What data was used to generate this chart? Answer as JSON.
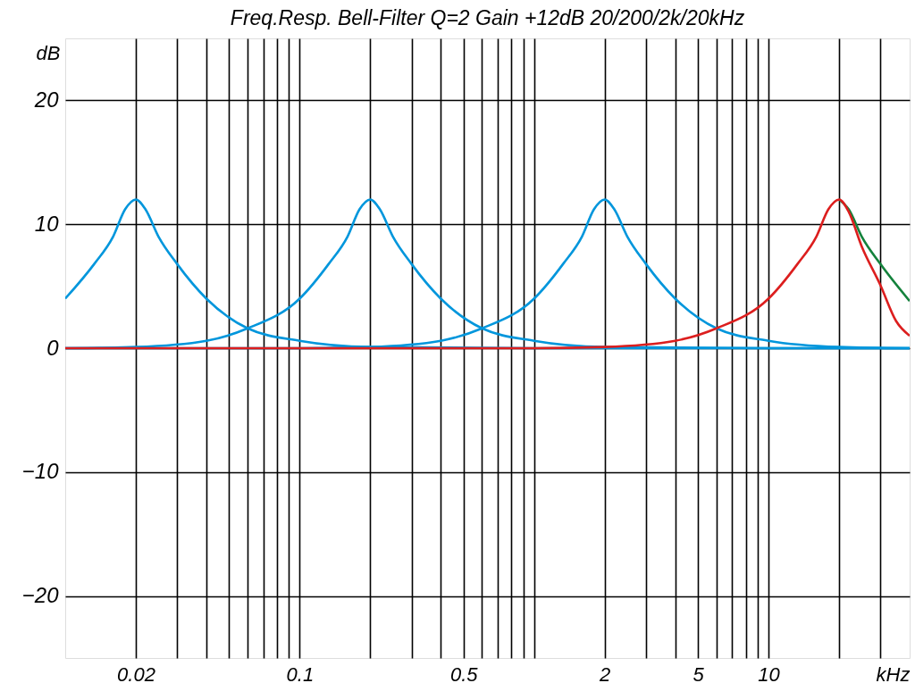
{
  "chart_data": {
    "type": "line",
    "title": "Freq.Resp. Bell-Filter Q=2 Gain +12dB 20/200/2k/20kHz",
    "xlabel": "kHz",
    "ylabel": "dB",
    "log": "x",
    "grid": true,
    "legend": false,
    "xlim": [
      0.01,
      40
    ],
    "ylim": [
      -25,
      25
    ],
    "xticks": [
      {
        "value": 0.02,
        "label": "0.02"
      },
      {
        "value": 0.03,
        "label": null
      },
      {
        "value": 0.04,
        "label": null
      },
      {
        "value": 0.05,
        "label": null
      },
      {
        "value": 0.06,
        "label": null
      },
      {
        "value": 0.07,
        "label": null
      },
      {
        "value": 0.08,
        "label": null
      },
      {
        "value": 0.09,
        "label": null
      },
      {
        "value": 0.1,
        "label": "0.1"
      },
      {
        "value": 0.2,
        "label": null
      },
      {
        "value": 0.3,
        "label": null
      },
      {
        "value": 0.4,
        "label": null
      },
      {
        "value": 0.5,
        "label": "0.5"
      },
      {
        "value": 0.6,
        "label": null
      },
      {
        "value": 0.7,
        "label": null
      },
      {
        "value": 0.8,
        "label": null
      },
      {
        "value": 0.9,
        "label": null
      },
      {
        "value": 1,
        "label": null
      },
      {
        "value": 2,
        "label": "2"
      },
      {
        "value": 3,
        "label": null
      },
      {
        "value": 4,
        "label": null
      },
      {
        "value": 5,
        "label": "5"
      },
      {
        "value": 6,
        "label": null
      },
      {
        "value": 7,
        "label": null
      },
      {
        "value": 8,
        "label": null
      },
      {
        "value": 9,
        "label": null
      },
      {
        "value": 10,
        "label": "10"
      },
      {
        "value": 20,
        "label": null
      },
      {
        "value": 30,
        "label": null
      }
    ],
    "yticks": [
      {
        "value": -20,
        "label": "−20"
      },
      {
        "value": -10,
        "label": "−10"
      },
      0,
      10,
      20
    ],
    "series": [
      {
        "color": "#0096dc",
        "x": [
          0.01,
          0.0133,
          0.016,
          0.018,
          0.02,
          0.022,
          0.025,
          0.03,
          0.04,
          0.06,
          0.1,
          0.2,
          1,
          40
        ],
        "values": [
          4.0,
          6.8,
          9.0,
          11.2,
          12,
          11.2,
          9.0,
          6.8,
          4.0,
          1.6,
          0.6,
          0.1,
          0,
          0
        ]
      },
      {
        "color": "#0096dc",
        "x": [
          0.01,
          0.02,
          0.04,
          0.06,
          0.1,
          0.133,
          0.16,
          0.18,
          0.2,
          0.22,
          0.25,
          0.3,
          0.4,
          0.6,
          1,
          2,
          10,
          40
        ],
        "values": [
          0,
          0.1,
          0.6,
          1.6,
          4.0,
          6.8,
          9.0,
          11.2,
          12,
          11.2,
          9.0,
          6.8,
          4.0,
          1.6,
          0.6,
          0.1,
          0,
          0
        ]
      },
      {
        "color": "#0096dc",
        "x": [
          0.01,
          0.1,
          0.2,
          0.4,
          0.6,
          1,
          1.33,
          1.6,
          1.8,
          2,
          2.2,
          2.5,
          3,
          4,
          6,
          10,
          20,
          40
        ],
        "values": [
          0,
          0,
          0.1,
          0.6,
          1.6,
          4.0,
          6.8,
          9.0,
          11.2,
          12,
          11.2,
          9.0,
          6.8,
          4.0,
          1.6,
          0.6,
          0.1,
          0
        ]
      },
      {
        "color": "#14823c",
        "x": [
          20,
          22,
          25,
          30,
          40
        ],
        "values": [
          12,
          11.2,
          9.0,
          6.8,
          3.8
        ]
      },
      {
        "color": "#dc1e1e",
        "x": [
          0.01,
          1,
          2,
          4,
          6,
          10,
          13.3,
          16,
          18,
          20,
          22,
          25,
          30,
          35,
          40
        ],
        "values": [
          0,
          0,
          0.1,
          0.6,
          1.6,
          4.0,
          6.8,
          9.0,
          11.2,
          12,
          11.0,
          8.2,
          5.1,
          2.2,
          1.0
        ]
      }
    ]
  }
}
